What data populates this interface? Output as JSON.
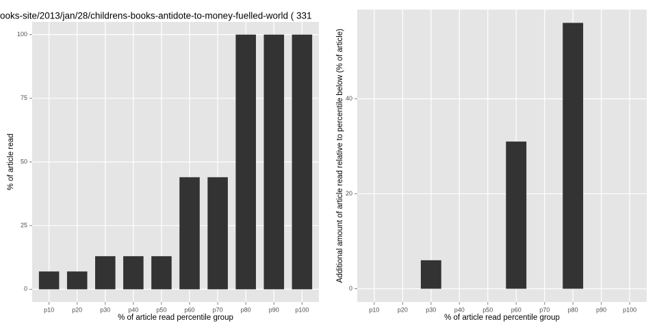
{
  "chart_data": [
    {
      "type": "bar",
      "title": "ooks-site/2013/jan/28/childrens-books-antidote-to-money-fuelled-world ( 331",
      "x_label": "% of article read percentile group",
      "y_label": "% of article read",
      "categories": [
        "p10",
        "p20",
        "p30",
        "p40",
        "p50",
        "p60",
        "p70",
        "p80",
        "p90",
        "p100"
      ],
      "values": [
        7,
        7,
        13,
        13,
        13,
        44,
        44,
        100,
        100,
        100
      ],
      "color": "#333333",
      "ylim": [
        -5,
        105
      ],
      "yticks": [
        0,
        25,
        50,
        75,
        100
      ],
      "grid": true
    },
    {
      "type": "bar",
      "x_label": "% of article read percentile group",
      "y_label": "Additional amount of article read relative to percentile below (% of article)",
      "categories": [
        "p10",
        "p20",
        "p30",
        "p40",
        "p50",
        "p60",
        "p70",
        "p80",
        "p90",
        "p100"
      ],
      "values": [
        0,
        0,
        6,
        0,
        0,
        31,
        0,
        56,
        0,
        0
      ],
      "color": "#333333",
      "ylim": [
        -2.8,
        58.8
      ],
      "yticks": [
        0,
        20,
        40
      ],
      "grid": true
    }
  ]
}
